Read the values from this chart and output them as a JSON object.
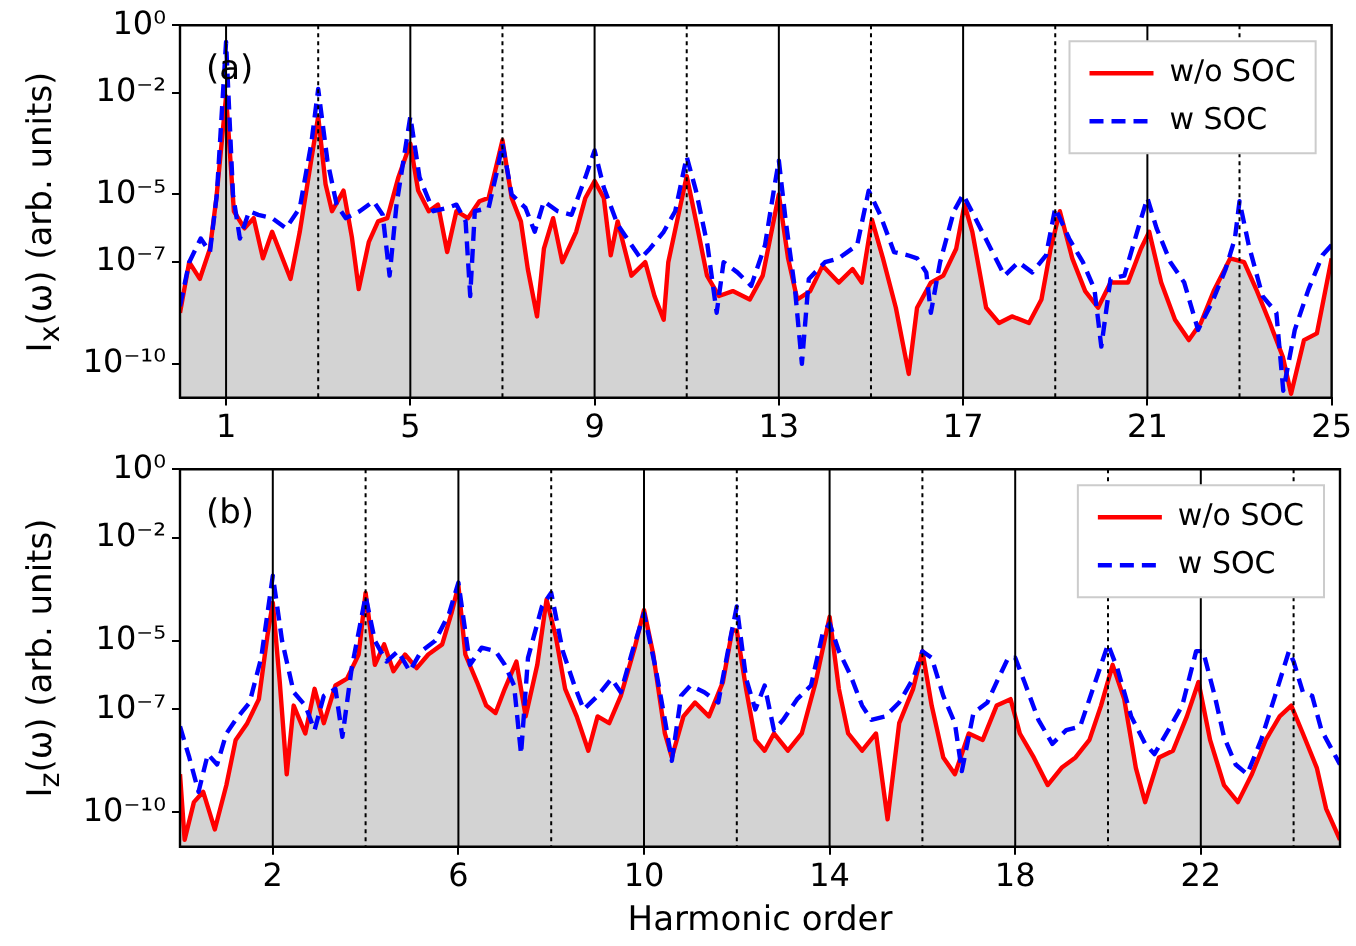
{
  "chart_data": [
    {
      "type": "line",
      "ylabel": "I$_{x}$(ω) (arb. units)",
      "annotations": [
        "(a)"
      ],
      "log": true,
      "legend": "top right",
      "grid": false,
      "xlim": [
        0,
        25
      ],
      "xticks": [
        1,
        5,
        9,
        13,
        17,
        21,
        25
      ],
      "ylim": [
        1e-11,
        1
      ],
      "yticks": [
        {
          "value": 1,
          "label": "10⁰"
        },
        {
          "value": 0.01,
          "label": "10⁻²"
        },
        {
          "value": 1e-05,
          "label": "10⁻⁵"
        },
        {
          "value": 1e-07,
          "label": "10⁻⁷"
        },
        {
          "value": 1e-10,
          "label": "10⁻¹⁰"
        }
      ],
      "ref_lines": [
        {
          "axis": "x",
          "value": 1,
          "color": "#000000",
          "line_style": "solid"
        },
        {
          "axis": "x",
          "value": 3,
          "color": "#000000",
          "line_style": "dotted"
        },
        {
          "axis": "x",
          "value": 5,
          "color": "#000000",
          "line_style": "solid"
        },
        {
          "axis": "x",
          "value": 7,
          "color": "#000000",
          "line_style": "dotted"
        },
        {
          "axis": "x",
          "value": 9,
          "color": "#000000",
          "line_style": "solid"
        },
        {
          "axis": "x",
          "value": 11,
          "color": "#000000",
          "line_style": "dotted"
        },
        {
          "axis": "x",
          "value": 13,
          "color": "#000000",
          "line_style": "solid"
        },
        {
          "axis": "x",
          "value": 15,
          "color": "#000000",
          "line_style": "dotted"
        },
        {
          "axis": "x",
          "value": 17,
          "color": "#000000",
          "line_style": "solid"
        },
        {
          "axis": "x",
          "value": 19,
          "color": "#000000",
          "line_style": "dotted"
        },
        {
          "axis": "x",
          "value": 21,
          "color": "#000000",
          "line_style": "solid"
        },
        {
          "axis": "x",
          "value": 23,
          "color": "#000000",
          "line_style": "dotted"
        }
      ],
      "series": [
        {
          "name": "w/o SOC",
          "type": "area",
          "color": "#ff0000",
          "line_style": "solid",
          "x": [
            0,
            0.2,
            0.43,
            0.65,
            0.79,
            1,
            1.17,
            1.4,
            1.6,
            1.8,
            2,
            2.4,
            2.6,
            2.8,
            3,
            3.16,
            3.3,
            3.55,
            3.73,
            3.88,
            4.1,
            4.3,
            4.5,
            4.74,
            5,
            5.17,
            5.4,
            5.6,
            5.8,
            6,
            6.25,
            6.5,
            6.7,
            7,
            7.2,
            7.4,
            7.55,
            7.75,
            7.9,
            8.1,
            8.3,
            8.6,
            8.8,
            9,
            9.2,
            9.35,
            9.5,
            9.8,
            10.1,
            10.3,
            10.5,
            10.6,
            11,
            11.25,
            11.44,
            11.7,
            12,
            12.37,
            12.65,
            12.84,
            13,
            13.2,
            13.4,
            13.68,
            13.95,
            14.3,
            14.6,
            14.8,
            15.02,
            15.26,
            15.54,
            15.82,
            16,
            16.3,
            16.57,
            16.85,
            17.03,
            17.2,
            17.5,
            17.78,
            18.06,
            18.43,
            18.7,
            18.9,
            19.1,
            19.37,
            19.65,
            19.93,
            20.2,
            20.58,
            20.86,
            21.04,
            21.3,
            21.6,
            21.9,
            22.16,
            22.44,
            22.8,
            23.1,
            23.38,
            23.66,
            23.94,
            24.12,
            24.4,
            24.68,
            25
          ],
          "values": [
            3.2e-09,
            1e-07,
            3.2e-08,
            2.5e-07,
            7.9e-06,
            0.0079,
            3.2e-06,
            1e-06,
            2e-06,
            1.3e-07,
            7.9e-07,
            3.2e-08,
            7.9e-07,
            4e-05,
            0.002,
            2e-05,
            3.2e-06,
            1.3e-05,
            5.6e-07,
            1.6e-08,
            4e-07,
            1.6e-06,
            2e-06,
            3.2e-05,
            0.00032,
            1.3e-05,
            3.2e-06,
            5e-06,
            2e-07,
            3.2e-06,
            2e-06,
            6.3e-06,
            7.9e-06,
            0.0004,
            7.9e-06,
            1.6e-06,
            6.3e-08,
            2.5e-09,
            2.5e-07,
            2e-06,
            1e-07,
            7.9e-07,
            7.9e-06,
            2.5e-05,
            7.9e-06,
            1.6e-07,
            1.6e-06,
            4e-08,
            1e-07,
            1e-08,
            2e-09,
            1e-07,
            3.5e-05,
            7.9e-07,
            4e-08,
            1e-08,
            1.4e-08,
            7.9e-09,
            4e-08,
            7.9e-07,
            1e-05,
            1.3e-07,
            7.9e-09,
            1.4e-08,
            7.9e-08,
            2.5e-08,
            6.3e-08,
            2.5e-08,
            1.8e-06,
            1.3e-07,
            4.5e-09,
            5e-11,
            4.5e-09,
            2.5e-08,
            4e-08,
            2.5e-07,
            5e-06,
            7.9e-07,
            4.5e-09,
            1.6e-09,
            2.5e-09,
            1.6e-09,
            7.9e-09,
            2.5e-07,
            3.2e-06,
            1.3e-07,
            1.4e-08,
            4.5e-09,
            2.5e-08,
            2.5e-08,
            2.5e-07,
            7.9e-07,
            2.5e-08,
            2e-09,
            5e-10,
            1.6e-09,
            1.4e-08,
            1.3e-07,
            1e-07,
            1.4e-08,
            1.6e-09,
            1.6e-10,
            1.3e-11,
            5e-10,
            7.9e-10,
            1.3e-07
          ]
        },
        {
          "name": "w SOC",
          "type": "line",
          "color": "#0000ff",
          "line_style": "dashed",
          "x": [
            0,
            0.2,
            0.45,
            0.65,
            0.8,
            1,
            1.15,
            1.3,
            1.5,
            1.7,
            2,
            2.3,
            2.6,
            2.85,
            3,
            3.2,
            3.4,
            3.6,
            3.9,
            4.2,
            4.4,
            4.55,
            4.7,
            4.85,
            5,
            5.2,
            5.5,
            5.8,
            6,
            6.2,
            6.3,
            6.4,
            6.7,
            6.9,
            7,
            7.2,
            7.5,
            7.7,
            7.9,
            8.2,
            8.5,
            8.8,
            9,
            9.2,
            9.5,
            9.8,
            10,
            10.2,
            10.5,
            10.75,
            11,
            11.2,
            11.45,
            11.65,
            11.8,
            12.1,
            12.4,
            12.7,
            12.9,
            13,
            13.15,
            13.35,
            13.5,
            13.65,
            14,
            14.3,
            14.7,
            14.95,
            15.2,
            15.5,
            15.8,
            16,
            16.2,
            16.3,
            16.5,
            16.8,
            17,
            17.3,
            17.6,
            17.9,
            18.2,
            18.5,
            18.8,
            19,
            19.3,
            19.6,
            19.85,
            20,
            20.2,
            20.5,
            20.8,
            21,
            21.2,
            21.5,
            21.8,
            22.1,
            22.4,
            22.7,
            22.9,
            23,
            23.2,
            23.5,
            23.8,
            23.95,
            24.2,
            24.5,
            24.8,
            25
          ],
          "values": [
            5e-09,
            1e-07,
            5e-07,
            2e-07,
            1e-05,
            0.32,
            1e-05,
            5e-07,
            3.2e-06,
            2.5e-06,
            2e-06,
            1e-06,
            4e-06,
            0.00032,
            0.013,
            0.0001,
            5e-06,
            2e-06,
            3.2e-06,
            6.3e-06,
            2.5e-06,
            4e-08,
            5e-06,
            0.0001,
            0.002,
            3.2e-05,
            3.2e-06,
            4e-06,
            5e-06,
            1.6e-06,
            1e-08,
            3.2e-06,
            4e-06,
            6.3e-05,
            0.00032,
            1e-05,
            4e-06,
            7.9e-07,
            6.3e-06,
            3.2e-06,
            2.5e-06,
            3.2e-05,
            0.0002,
            1.6e-05,
            1.3e-06,
            3.2e-07,
            1.3e-07,
            2.5e-07,
            7.9e-07,
            3.2e-06,
            0.00013,
            1.3e-05,
            3.2e-07,
            3.2e-09,
            1e-07,
            5e-08,
            2e-08,
            3.2e-07,
            1.6e-05,
            0.0001,
            1.6e-06,
            1.6e-08,
            1e-10,
            3.2e-08,
            1e-07,
            1.3e-07,
            3.2e-07,
            1.3e-05,
            2.5e-06,
            2e-07,
            1.6e-07,
            1.3e-07,
            5e-08,
            3.2e-09,
            1e-07,
            3.2e-06,
            1e-05,
            1.6e-06,
            2.5e-07,
            4e-08,
            1e-07,
            5e-08,
            1.6e-07,
            4e-06,
            5e-07,
            1e-07,
            1.6e-08,
            3.2e-10,
            3.2e-08,
            4e-08,
            1e-06,
            7.9e-06,
            1e-06,
            1e-07,
            2.5e-08,
            1e-09,
            6.3e-09,
            6.3e-08,
            5e-07,
            6.3e-06,
            3.2e-07,
            1e-08,
            3.2e-09,
            1.6e-11,
            1e-09,
            1.6e-08,
            1.6e-07,
            3.2e-07
          ]
        }
      ]
    },
    {
      "type": "line",
      "xlabel": "Harmonic order",
      "ylabel": "I$_{z}$(ω) (arb. units)",
      "annotations": [
        "(b)"
      ],
      "log": true,
      "legend": "top right",
      "grid": false,
      "xlim": [
        0,
        25
      ],
      "xticks": [
        2,
        6,
        10,
        14,
        18,
        22
      ],
      "ylim": [
        1e-11,
        1
      ],
      "yticks": [
        {
          "value": 1,
          "label": "10⁰"
        },
        {
          "value": 0.01,
          "label": "10⁻²"
        },
        {
          "value": 1e-05,
          "label": "10⁻⁵"
        },
        {
          "value": 1e-07,
          "label": "10⁻⁷"
        },
        {
          "value": 1e-10,
          "label": "10⁻¹⁰"
        }
      ],
      "ref_lines": [
        {
          "axis": "x",
          "value": 2,
          "color": "#000000",
          "line_style": "solid"
        },
        {
          "axis": "x",
          "value": 4,
          "color": "#000000",
          "line_style": "dotted"
        },
        {
          "axis": "x",
          "value": 6,
          "color": "#000000",
          "line_style": "solid"
        },
        {
          "axis": "x",
          "value": 8,
          "color": "#000000",
          "line_style": "dotted"
        },
        {
          "axis": "x",
          "value": 10,
          "color": "#000000",
          "line_style": "solid"
        },
        {
          "axis": "x",
          "value": 12,
          "color": "#000000",
          "line_style": "dotted"
        },
        {
          "axis": "x",
          "value": 14,
          "color": "#000000",
          "line_style": "solid"
        },
        {
          "axis": "x",
          "value": 16,
          "color": "#000000",
          "line_style": "dotted"
        },
        {
          "axis": "x",
          "value": 18,
          "color": "#000000",
          "line_style": "solid"
        },
        {
          "axis": "x",
          "value": 20,
          "color": "#000000",
          "line_style": "dotted"
        },
        {
          "axis": "x",
          "value": 22,
          "color": "#000000",
          "line_style": "solid"
        },
        {
          "axis": "x",
          "value": 24,
          "color": "#000000",
          "line_style": "dotted"
        }
      ],
      "series": [
        {
          "name": "w/o SOC",
          "type": "area",
          "color": "#ff0000",
          "line_style": "solid",
          "x": [
            0,
            0.1,
            0.3,
            0.5,
            0.75,
            1,
            1.2,
            1.45,
            1.7,
            1.88,
            2,
            2.15,
            2.3,
            2.45,
            2.7,
            2.9,
            3.1,
            3.35,
            3.6,
            3.85,
            4,
            4.2,
            4.4,
            4.6,
            4.85,
            5.1,
            5.35,
            5.65,
            5.85,
            6,
            6.15,
            6.4,
            6.6,
            6.8,
            7,
            7.25,
            7.45,
            7.7,
            7.9,
            8.1,
            8.3,
            8.55,
            8.8,
            9,
            9.25,
            9.5,
            9.8,
            10,
            10.2,
            10.45,
            10.6,
            10.85,
            11.1,
            11.4,
            11.7,
            11.9,
            12,
            12.2,
            12.4,
            12.6,
            12.8,
            13.1,
            13.4,
            13.7,
            14,
            14.2,
            14.4,
            14.7,
            15,
            15.25,
            15.5,
            15.8,
            16,
            16.2,
            16.45,
            16.7,
            17,
            17.3,
            17.6,
            17.9,
            18.1,
            18.4,
            18.7,
            19,
            19.3,
            19.6,
            19.85,
            20.1,
            20.35,
            20.6,
            20.8,
            21.1,
            21.4,
            21.7,
            21.95,
            22.2,
            22.5,
            22.8,
            23.1,
            23.4,
            23.7,
            23.95,
            24.2,
            24.5,
            24.7,
            25
          ],
          "values": [
            1.3e-09,
            1.6e-11,
            2e-10,
            4e-10,
            3.2e-11,
            6.3e-10,
            1.3e-08,
            4e-08,
            2e-07,
            1.3e-05,
            0.00013,
            6.3e-07,
            1.3e-09,
            1.3e-07,
            2e-08,
            4e-07,
            4e-08,
            5e-07,
            7.9e-07,
            4e-06,
            0.00025,
            2e-06,
            7.9e-06,
            1.3e-06,
            4e-06,
            1.6e-06,
            4e-06,
            7.9e-06,
            6.3e-05,
            0.0004,
            4e-06,
            6.3e-07,
            1.3e-07,
            7.9e-08,
            4e-07,
            2.5e-06,
            6.3e-08,
            2e-06,
            0.00016,
            1.3e-05,
            4e-07,
            6.3e-08,
            6.3e-09,
            6.3e-08,
            4e-08,
            2.5e-07,
            6.3e-06,
            7.9e-05,
            4e-06,
            2e-08,
            4e-09,
            6.3e-08,
            1.6e-07,
            6.3e-08,
            6.3e-07,
            2e-05,
            2e-05,
            4e-07,
            1.3e-08,
            6.3e-09,
            2e-08,
            6.3e-09,
            2e-08,
            6.3e-07,
            5e-05,
            4e-07,
            2e-08,
            6.3e-09,
            2e-08,
            6.3e-11,
            4e-08,
            4e-07,
            5e-06,
            1.3e-07,
            4e-09,
            1.3e-09,
            2e-08,
            1.3e-08,
            1.3e-07,
            2e-07,
            2e-08,
            4e-09,
            6.3e-10,
            2e-09,
            4e-09,
            1.3e-08,
            1.3e-07,
            2e-06,
            2e-07,
            2e-09,
            2e-10,
            4e-09,
            6.3e-09,
            6.3e-08,
            6.3e-07,
            1.3e-08,
            6.3e-10,
            2e-10,
            1.3e-09,
            1.3e-08,
            6.3e-08,
            1.3e-07,
            2e-08,
            2e-09,
            1.3e-10,
            1.6e-11
          ]
        },
        {
          "name": "w SOC",
          "type": "line",
          "color": "#0000ff",
          "line_style": "dashed",
          "x": [
            0,
            0.2,
            0.4,
            0.6,
            0.8,
            1,
            1.2,
            1.5,
            1.75,
            2,
            2.2,
            2.45,
            2.7,
            2.9,
            3.1,
            3.35,
            3.5,
            3.7,
            4,
            4.2,
            4.45,
            4.7,
            4.95,
            5.2,
            5.5,
            5.8,
            6,
            6.25,
            6.5,
            6.8,
            7,
            7.2,
            7.35,
            7.5,
            7.8,
            8,
            8.25,
            8.5,
            8.7,
            9,
            9.3,
            9.5,
            9.75,
            10,
            10.25,
            10.45,
            10.6,
            10.8,
            11,
            11.3,
            11.6,
            11.85,
            12,
            12.2,
            12.4,
            12.6,
            12.8,
            13,
            13.3,
            13.6,
            13.85,
            14,
            14.2,
            14.45,
            14.7,
            14.9,
            15.2,
            15.5,
            15.8,
            16,
            16.2,
            16.45,
            16.7,
            16.85,
            17.1,
            17.4,
            17.6,
            17.85,
            18,
            18.2,
            18.5,
            18.8,
            19.1,
            19.4,
            19.7,
            20,
            20.2,
            20.5,
            20.8,
            21,
            21.3,
            21.6,
            21.9,
            22.05,
            22.3,
            22.5,
            22.75,
            23,
            23.3,
            23.6,
            23.9,
            24,
            24.2,
            24.4,
            24.6,
            24.8,
            25
          ],
          "values": [
            3.2e-08,
            4e-09,
            4e-10,
            5e-09,
            2.5e-09,
            2e-08,
            5e-08,
            1.6e-07,
            3.2e-06,
            0.00079,
            1e-05,
            3.2e-07,
            1.3e-07,
            2.5e-08,
            2.5e-07,
            4e-07,
            1.6e-08,
            1.6e-06,
            0.0002,
            1e-05,
            2.5e-06,
            5e-06,
            1.3e-06,
            5e-06,
            1e-05,
            6.3e-05,
            0.0005,
            2e-06,
            6.3e-06,
            5e-06,
            2e-06,
            5e-07,
            5e-09,
            3.2e-06,
            0.0001,
            0.00025,
            5e-06,
            5e-07,
            1e-07,
            2.5e-07,
            7.9e-07,
            3.2e-07,
            5e-06,
            6.3e-05,
            1.6e-06,
            5e-08,
            3.2e-09,
            2.5e-07,
            5e-07,
            3.2e-07,
            1.6e-07,
            1e-05,
            0.0001,
            7.9e-07,
            1e-07,
            5e-07,
            2.5e-08,
            5e-08,
            2e-07,
            5e-07,
            1.6e-05,
            3.2e-05,
            5e-06,
            1e-06,
            1.3e-07,
            5e-08,
            6.3e-08,
            1.6e-07,
            7.9e-07,
            5e-06,
            3.2e-06,
            2.5e-07,
            4e-08,
            1.6e-09,
            7.9e-08,
            1.6e-07,
            6.3e-07,
            3.2e-06,
            3.2e-06,
            6.3e-07,
            5e-08,
            1e-08,
            2.5e-08,
            3.2e-08,
            5e-07,
            7.9e-06,
            1.6e-06,
            6.3e-08,
            1e-08,
            5e-09,
            2.5e-08,
            1.3e-07,
            5e-06,
            5e-06,
            2.5e-07,
            1.6e-08,
            2.5e-09,
            1.3e-09,
            1.3e-08,
            2.5e-07,
            5e-06,
            2.5e-06,
            3.2e-07,
            2.5e-07,
            2.5e-08,
            7.9e-09,
            2.5e-09
          ]
        }
      ]
    }
  ]
}
